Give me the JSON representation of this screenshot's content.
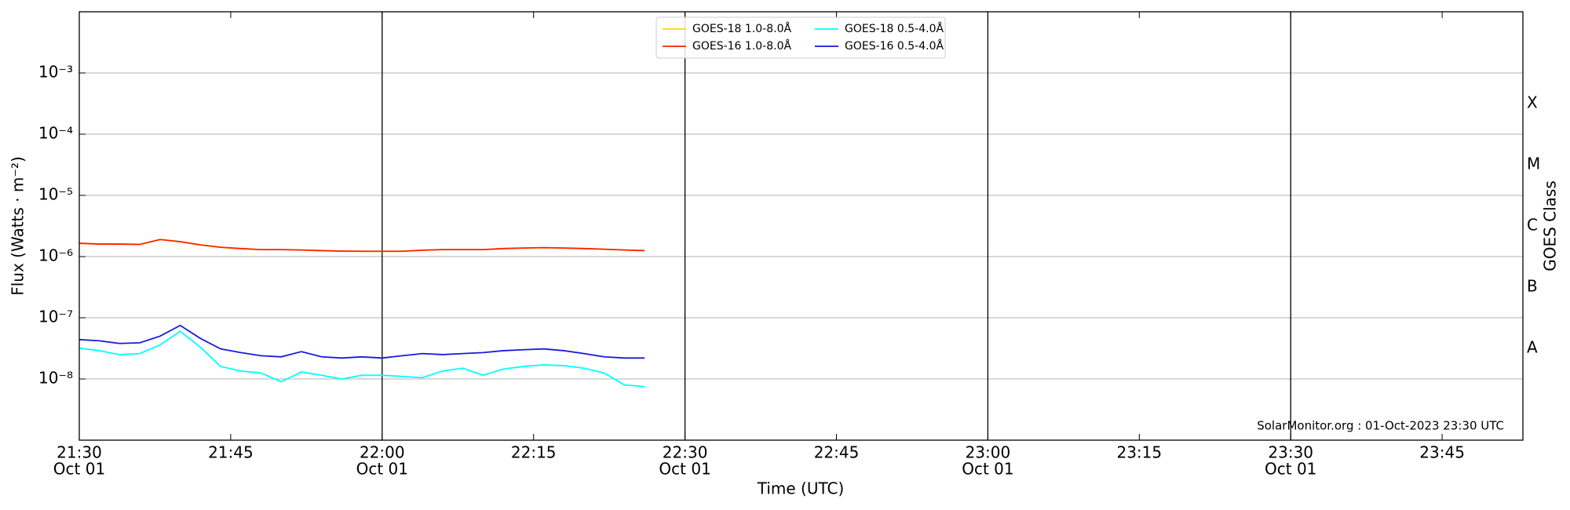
{
  "chart_data": {
    "type": "line",
    "y_label": "Flux (Watts · m⁻²)",
    "x_label": "Time (UTC)",
    "y2_label": "GOES Class",
    "annotation": "SolarMonitor.org : 01-Oct-2023 23:30 UTC",
    "log_y": true,
    "grid": true,
    "legend": "upper center",
    "x": [
      "Oct 01 21:30",
      "Oct 01 21:32",
      "Oct 01 21:34",
      "Oct 01 21:36",
      "Oct 01 21:38",
      "Oct 01 21:40",
      "Oct 01 21:42",
      "Oct 01 21:44",
      "Oct 01 21:46",
      "Oct 01 21:48",
      "Oct 01 21:50",
      "Oct 01 21:52",
      "Oct 01 21:54",
      "Oct 01 21:56",
      "Oct 01 21:58",
      "Oct 01 22:00",
      "Oct 01 22:02",
      "Oct 01 22:04",
      "Oct 01 22:06",
      "Oct 01 22:08",
      "Oct 01 22:10",
      "Oct 01 22:12",
      "Oct 01 22:14",
      "Oct 01 22:16",
      "Oct 01 22:18",
      "Oct 01 22:20",
      "Oct 01 22:22",
      "Oct 01 22:24",
      "Oct 01 22:26"
    ],
    "xlim": [
      "Oct 01 21:30",
      "Oct 01 23:53"
    ],
    "xticks": [
      {
        "value": "Oct 01 21:30",
        "label": [
          "21:30",
          "Oct 01"
        ]
      },
      {
        "value": "Oct 01 21:45",
        "label": [
          "21:45"
        ]
      },
      {
        "value": "Oct 01 22:00",
        "label": [
          "22:00",
          "Oct 01"
        ]
      },
      {
        "value": "Oct 01 22:15",
        "label": [
          "22:15"
        ]
      },
      {
        "value": "Oct 01 22:30",
        "label": [
          "22:30",
          "Oct 01"
        ]
      },
      {
        "value": "Oct 01 22:45",
        "label": [
          "22:45"
        ]
      },
      {
        "value": "Oct 01 23:00",
        "label": [
          "23:00",
          "Oct 01"
        ]
      },
      {
        "value": "Oct 01 23:15",
        "label": [
          "23:15"
        ]
      },
      {
        "value": "Oct 01 23:30",
        "label": [
          "23:30",
          "Oct 01"
        ]
      },
      {
        "value": "Oct 01 23:45",
        "label": [
          "23:45"
        ]
      }
    ],
    "x_major_grid": [
      "Oct 01 22:00",
      "Oct 01 22:30",
      "Oct 01 23:00",
      "Oct 01 23:30"
    ],
    "ylim": [
      1e-09,
      0.01
    ],
    "yticks": [
      {
        "value": 1e-08,
        "label": "10⁻⁸"
      },
      {
        "value": 1e-07,
        "label": "10⁻⁷"
      },
      {
        "value": 1e-06,
        "label": "10⁻⁶"
      },
      {
        "value": 1e-05,
        "label": "10⁻⁵"
      },
      {
        "value": 0.0001,
        "label": "10⁻⁴"
      },
      {
        "value": 0.001,
        "label": "10⁻³"
      }
    ],
    "y2lim": [
      1e-09,
      0.01
    ],
    "y2ticks": [
      {
        "value": 3.16e-08,
        "label": "A"
      },
      {
        "value": 3.16e-07,
        "label": "B"
      },
      {
        "value": 3.16e-06,
        "label": "C"
      },
      {
        "value": 3.16e-05,
        "label": "M"
      },
      {
        "value": 0.000316,
        "label": "X"
      }
    ],
    "series": [
      {
        "name": "GOES-18 1.0-8.0Å",
        "color": "#ffd700",
        "values": [
          1.65e-06,
          1.6e-06,
          1.6e-06,
          1.58e-06,
          1.9e-06,
          1.75e-06,
          1.55e-06,
          1.42e-06,
          1.35e-06,
          1.3e-06,
          1.3e-06,
          1.28e-06,
          1.25e-06,
          1.23e-06,
          1.22e-06,
          1.22e-06,
          1.22e-06,
          1.27e-06,
          1.3e-06,
          1.3e-06,
          1.3e-06,
          1.35e-06,
          1.38e-06,
          1.4e-06,
          1.38e-06,
          1.35e-06,
          1.32e-06,
          1.28e-06,
          1.25e-06
        ]
      },
      {
        "name": "GOES-16 1.0-8.0Å",
        "color": "#ff2200",
        "values": [
          1.65e-06,
          1.6e-06,
          1.6e-06,
          1.58e-06,
          1.9e-06,
          1.75e-06,
          1.55e-06,
          1.42e-06,
          1.35e-06,
          1.3e-06,
          1.3e-06,
          1.28e-06,
          1.25e-06,
          1.23e-06,
          1.22e-06,
          1.22e-06,
          1.22e-06,
          1.27e-06,
          1.3e-06,
          1.3e-06,
          1.3e-06,
          1.35e-06,
          1.38e-06,
          1.4e-06,
          1.38e-06,
          1.35e-06,
          1.32e-06,
          1.28e-06,
          1.25e-06
        ]
      },
      {
        "name": "GOES-18 0.5-4.0Å",
        "color": "#00ffff",
        "values": [
          3.2e-08,
          2.9e-08,
          2.5e-08,
          2.6e-08,
          3.6e-08,
          6e-08,
          3.3e-08,
          1.6e-08,
          1.35e-08,
          1.25e-08,
          9e-09,
          1.3e-08,
          1.15e-08,
          1e-08,
          1.15e-08,
          1.15e-08,
          1.1e-08,
          1.05e-08,
          1.35e-08,
          1.5e-08,
          1.15e-08,
          1.45e-08,
          1.6e-08,
          1.7e-08,
          1.65e-08,
          1.5e-08,
          1.25e-08,
          8e-09,
          7.5e-09
        ]
      },
      {
        "name": "GOES-16 0.5-4.0Å",
        "color": "#1a1adb",
        "values": [
          4.4e-08,
          4.2e-08,
          3.8e-08,
          3.9e-08,
          5e-08,
          7.5e-08,
          4.6e-08,
          3.1e-08,
          2.7e-08,
          2.4e-08,
          2.3e-08,
          2.8e-08,
          2.3e-08,
          2.2e-08,
          2.3e-08,
          2.2e-08,
          2.4e-08,
          2.6e-08,
          2.5e-08,
          2.6e-08,
          2.7e-08,
          2.9e-08,
          3e-08,
          3.1e-08,
          2.9e-08,
          2.6e-08,
          2.3e-08,
          2.2e-08,
          2.2e-08
        ]
      }
    ]
  }
}
